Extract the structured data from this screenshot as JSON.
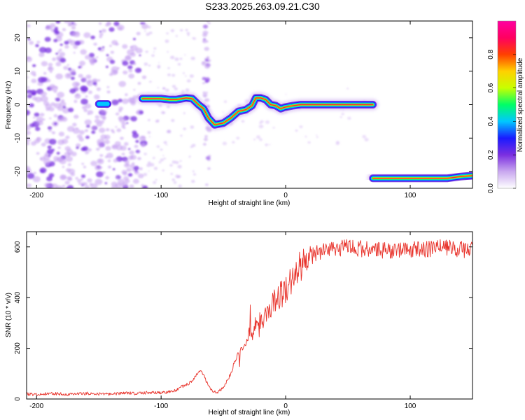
{
  "figure_title": "S233.2025.263.09.21.C30",
  "chart_data": [
    {
      "type": "heatmap",
      "title": "",
      "xlabel": "Height of straight line (km)",
      "ylabel": "Frequency (Hz)",
      "xlim": [
        -208,
        150
      ],
      "ylim": [
        -25,
        25
      ],
      "xticks": [
        -200,
        -100,
        0,
        100
      ],
      "yticks": [
        -20,
        -10,
        0,
        10,
        20
      ],
      "colorbar": {
        "label": "Normalized spectral amplitude",
        "range": [
          0,
          1
        ],
        "ticks": [
          0.0,
          0.2,
          0.4,
          0.6,
          0.8
        ],
        "colors": [
          "#ffffff",
          "#c9a8ef",
          "#7b2fe0",
          "#1a1aff",
          "#00c8ff",
          "#00ff66",
          "#c8ff00",
          "#ffd000",
          "#ff4000",
          "#ff0060",
          "#ff00a0"
        ]
      },
      "ridge_segments": [
        {
          "points": [
            [
              -150,
              0.2
            ],
            [
              -143,
              0.2
            ]
          ],
          "peak": 0.25
        },
        {
          "points": [
            [
              -115,
              1.8
            ],
            [
              -100,
              1.8
            ],
            [
              -93,
              1.5
            ],
            [
              -88,
              1.5
            ],
            [
              -80,
              2
            ],
            [
              -75,
              1.8
            ],
            [
              -70,
              0
            ],
            [
              -66,
              -1.2
            ],
            [
              -62,
              -4
            ],
            [
              -57,
              -6
            ],
            [
              -50,
              -5.5
            ],
            [
              -44,
              -4
            ],
            [
              -38,
              -2
            ],
            [
              -32,
              -1.5
            ],
            [
              -27,
              -0.3
            ],
            [
              -24,
              2
            ],
            [
              -20,
              2
            ],
            [
              -16,
              1.5
            ],
            [
              -12,
              0
            ],
            [
              -8,
              -0.3
            ],
            [
              -4,
              -1.2
            ],
            [
              -1,
              -0.8
            ],
            [
              6,
              -0.3
            ],
            [
              12,
              0
            ],
            [
              30,
              0
            ],
            [
              50,
              0
            ],
            [
              70,
              0
            ]
          ],
          "peak": 0.8
        },
        {
          "points": [
            [
              70,
              -22
            ],
            [
              90,
              -22
            ],
            [
              110,
              -22
            ],
            [
              130,
              -22
            ],
            [
              140,
              -21.5
            ],
            [
              150,
              -21.2
            ]
          ],
          "peak": 0.9
        }
      ]
    },
    {
      "type": "line",
      "title": "",
      "xlabel": "Height of straight line (km)",
      "ylabel": "SNR (10 * v/v)",
      "xlim": [
        -208,
        150
      ],
      "ylim": [
        0,
        660
      ],
      "xticks": [
        -200,
        -100,
        0,
        100
      ],
      "yticks": [
        0,
        200,
        400,
        600
      ],
      "series": [
        {
          "name": "SNR",
          "color": "#e8322a",
          "x": [
            -208,
            -200,
            -190,
            -180,
            -170,
            -160,
            -150,
            -140,
            -130,
            -120,
            -110,
            -100,
            -90,
            -85,
            -80,
            -75,
            -72,
            -70,
            -68,
            -65,
            -62,
            -58,
            -55,
            -50,
            -45,
            -40,
            -35,
            -30,
            -25,
            -20,
            -15,
            -10,
            -5,
            0,
            5,
            10,
            15,
            20,
            25,
            30,
            40,
            50,
            60,
            70,
            80,
            90,
            100,
            110,
            120,
            130,
            140,
            150
          ],
          "values": [
            20,
            18,
            22,
            20,
            18,
            22,
            20,
            18,
            25,
            22,
            25,
            25,
            30,
            45,
            55,
            70,
            95,
            105,
            110,
            85,
            50,
            30,
            25,
            45,
            90,
            160,
            200,
            240,
            270,
            300,
            340,
            380,
            410,
            430,
            470,
            510,
            540,
            560,
            575,
            585,
            590,
            600,
            595,
            585,
            585,
            590,
            590,
            590,
            595,
            595,
            590,
            590
          ]
        }
      ]
    }
  ]
}
